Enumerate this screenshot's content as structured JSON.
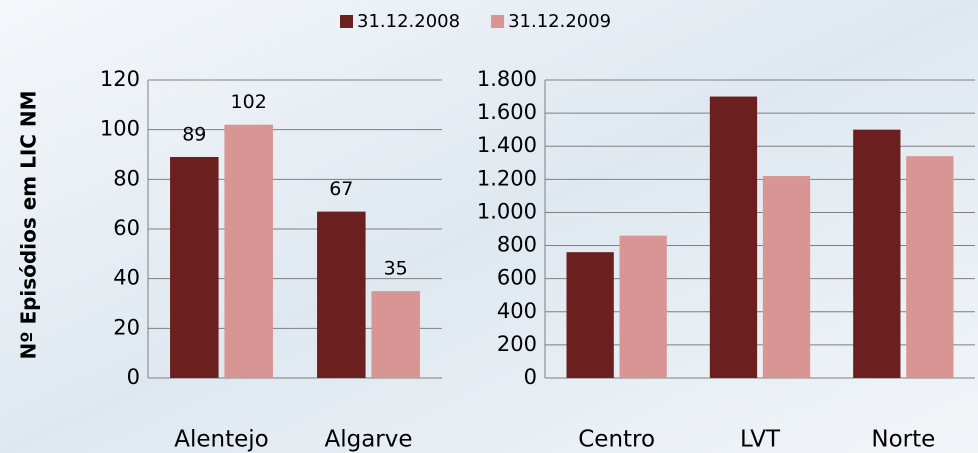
{
  "chart_data": [
    {
      "type": "bar",
      "ylabel": "Nº Episódios em LIC NM",
      "categories": [
        "Alentejo",
        "Algarve"
      ],
      "series": [
        {
          "name": "31.12.2008",
          "color": "#6b1f1f",
          "values": [
            89,
            67
          ]
        },
        {
          "name": "31.12.2009",
          "color": "#d99594",
          "values": [
            102,
            35
          ]
        }
      ],
      "ylim": [
        0,
        120
      ],
      "yticks": [
        0,
        20,
        40,
        60,
        80,
        100,
        120
      ],
      "grid": true,
      "data_labels": true,
      "legend": "top"
    },
    {
      "type": "bar",
      "categories": [
        "Centro",
        "LVT",
        "Norte"
      ],
      "series": [
        {
          "color": "#6b1f1f",
          "values": [
            760,
            1700,
            1500
          ]
        },
        {
          "color": "#d99594",
          "values": [
            860,
            1220,
            1340
          ]
        }
      ],
      "ylim": [
        0,
        1800
      ],
      "yticks": [
        0,
        200,
        400,
        600,
        800,
        {
          "value": 1000,
          "label": "1.000"
        },
        {
          "value": 1200,
          "label": "1.200"
        },
        {
          "value": 1400,
          "label": "1.400"
        },
        {
          "value": 1600,
          "label": "1.600"
        },
        {
          "value": 1800,
          "label": "1.800"
        }
      ],
      "grid": true,
      "data_labels": false
    }
  ]
}
